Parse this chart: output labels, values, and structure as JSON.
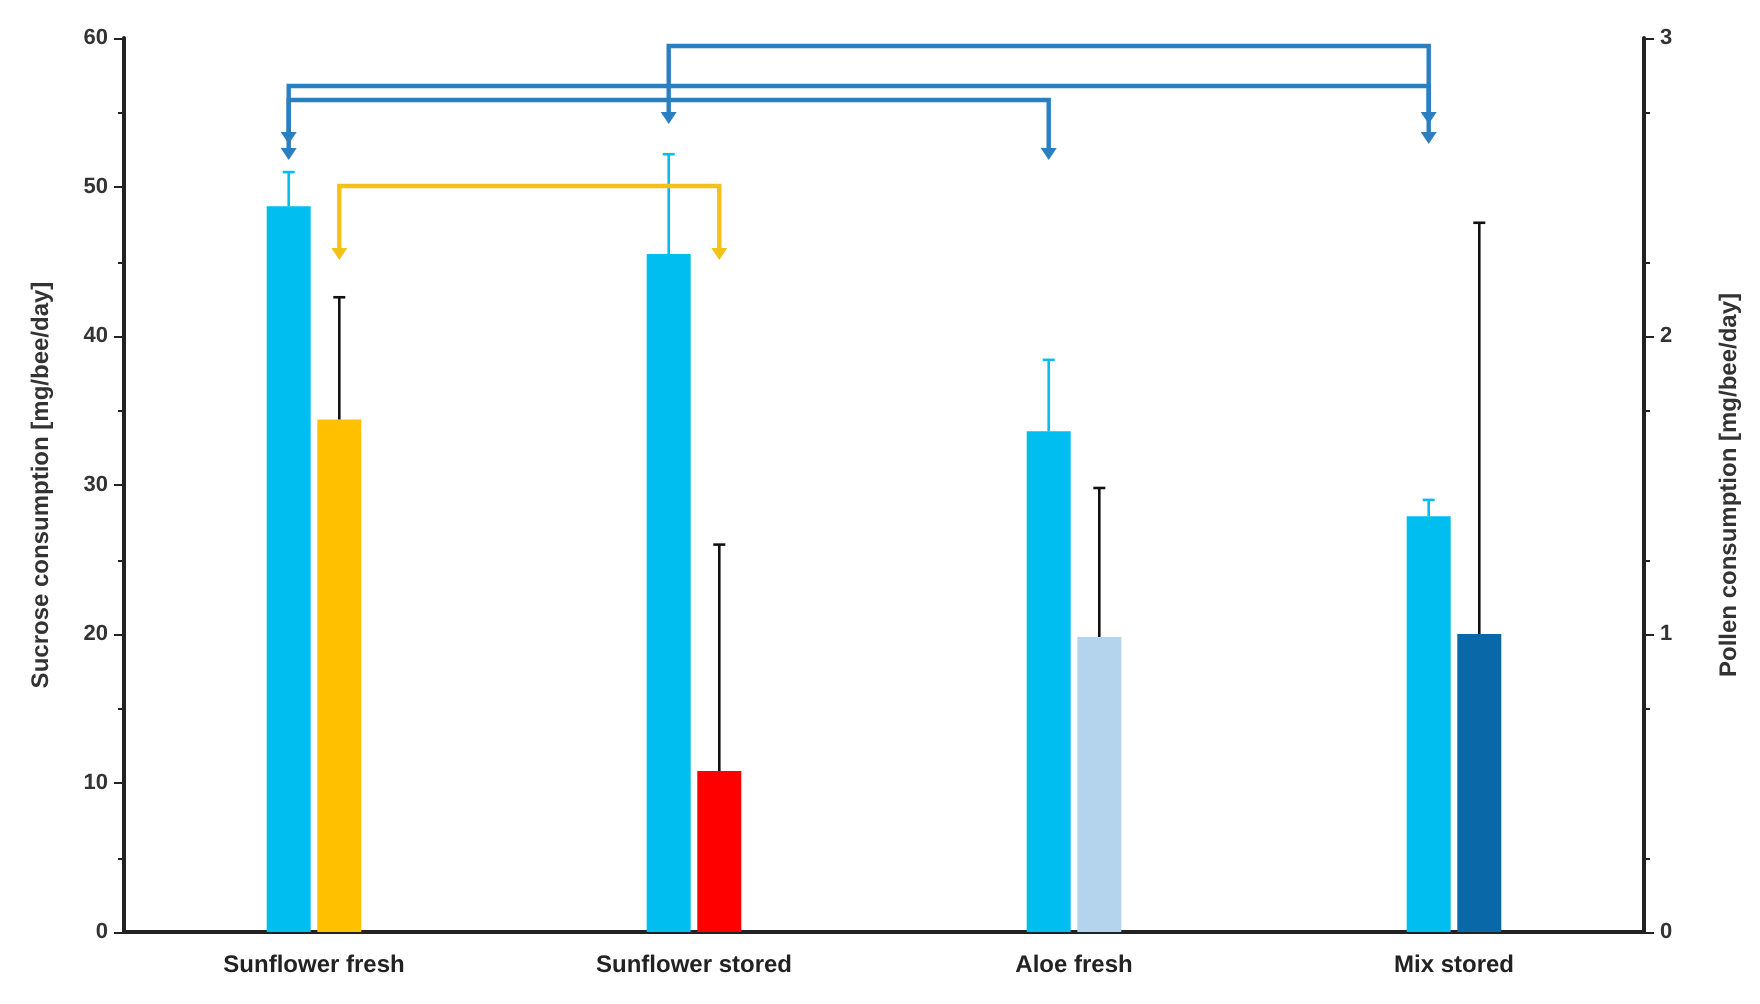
{
  "chart_data": {
    "type": "bar",
    "categories": [
      "Sunflower fresh",
      "Sunflower stored",
      "Aloe fresh",
      "Mix stored"
    ],
    "ylabel": "Sucrose consumption [mg/bee/day]",
    "y2label": "Pollen consumption [mg/bee/day]",
    "ylim": [
      0,
      60
    ],
    "yticks": [
      0,
      10,
      20,
      30,
      40,
      50,
      60
    ],
    "y2lim": [
      0,
      3
    ],
    "y2ticks": [
      0,
      1,
      2,
      3
    ],
    "series": [
      {
        "color": "#00bff0",
        "values": [
          48.7,
          45.5,
          33.6,
          27.9
        ],
        "errors": [
          [
            48.7,
            51
          ],
          [
            45.5,
            52.2
          ],
          [
            33.6,
            38.4
          ],
          [
            27.9,
            29
          ]
        ]
      },
      {
        "axis": "y2",
        "colors": [
          "#ffc000",
          "#ff0000",
          "#b4d4ee",
          "#0868a8"
        ],
        "values": [
          1.72,
          0.54,
          0.99,
          1.0
        ],
        "errors": [
          [
            1.72,
            2.13
          ],
          [
            0.54,
            1.3
          ],
          [
            0.99,
            1.49
          ],
          [
            1.0,
            2.38
          ]
        ]
      }
    ],
    "grid": false
  }
}
